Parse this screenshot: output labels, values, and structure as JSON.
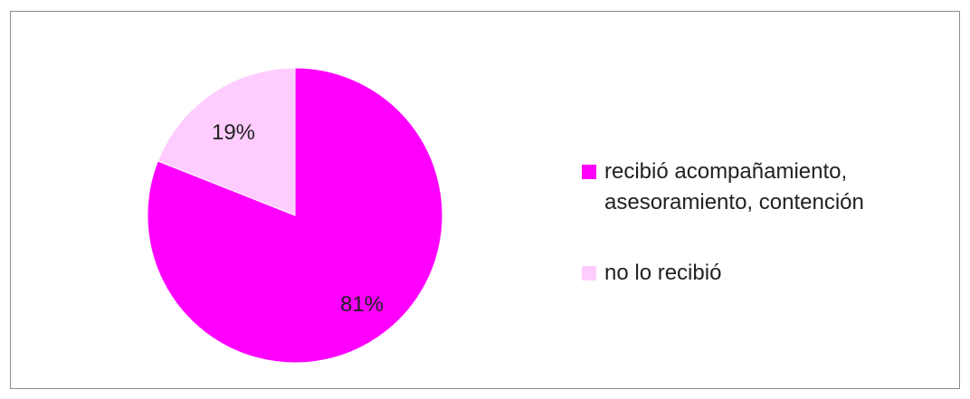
{
  "chart_data": {
    "type": "pie",
    "title": "",
    "slices": [
      {
        "label": "recibió acompañamiento, asesoramiento, contención",
        "value": 81,
        "data_label": "81%",
        "color": "#ff00ff"
      },
      {
        "label": "no lo recibió",
        "value": 19,
        "data_label": "19%",
        "color": "#ffccff"
      }
    ],
    "legend_placement": "right",
    "slice_outline_color": "#ffffff"
  }
}
